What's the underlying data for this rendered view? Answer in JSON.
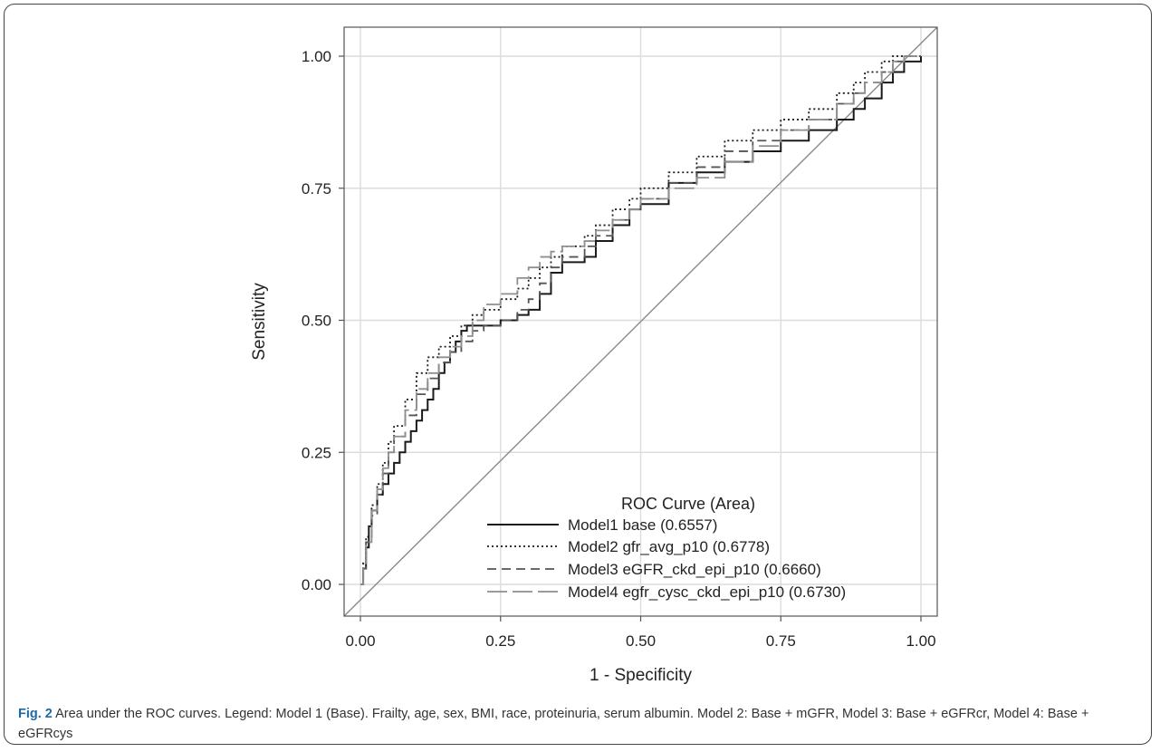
{
  "chart_data": {
    "type": "line",
    "xlabel": "1 - Specificity",
    "ylabel": "Sensitivity",
    "xlim": [
      0,
      1
    ],
    "ylim": [
      0,
      1
    ],
    "xticks": [
      "0.00",
      "0.25",
      "0.50",
      "0.75",
      "1.00"
    ],
    "yticks": [
      "0.00",
      "0.25",
      "0.50",
      "0.75",
      "1.00"
    ],
    "grid": true,
    "legend": {
      "title": "ROC Curve (Area)",
      "position": "bottom-right"
    },
    "colors": {
      "model1": "#1a1a1a",
      "model2": "#1a1a1a",
      "model3": "#555555",
      "model4": "#8f8f8f",
      "grid": "#dcdcdc",
      "diagonal": "#8a8a8a"
    },
    "series": [
      {
        "name": "Model1 base",
        "area": "(0.6557)",
        "style": "solid",
        "x": [
          0,
          0.005,
          0.01,
          0.015,
          0.02,
          0.03,
          0.04,
          0.05,
          0.06,
          0.07,
          0.08,
          0.09,
          0.1,
          0.11,
          0.12,
          0.13,
          0.14,
          0.15,
          0.16,
          0.17,
          0.18,
          0.19,
          0.2,
          0.22,
          0.25,
          0.28,
          0.3,
          0.32,
          0.34,
          0.36,
          0.4,
          0.42,
          0.45,
          0.48,
          0.5,
          0.55,
          0.6,
          0.65,
          0.7,
          0.75,
          0.8,
          0.85,
          0.88,
          0.9,
          0.93,
          0.95,
          0.97,
          1.0
        ],
        "y": [
          0,
          0.03,
          0.07,
          0.11,
          0.14,
          0.17,
          0.19,
          0.21,
          0.23,
          0.25,
          0.27,
          0.29,
          0.31,
          0.33,
          0.35,
          0.37,
          0.4,
          0.42,
          0.44,
          0.46,
          0.48,
          0.49,
          0.49,
          0.49,
          0.5,
          0.51,
          0.52,
          0.55,
          0.59,
          0.61,
          0.62,
          0.65,
          0.68,
          0.71,
          0.72,
          0.76,
          0.78,
          0.8,
          0.82,
          0.84,
          0.86,
          0.88,
          0.9,
          0.92,
          0.95,
          0.97,
          0.99,
          1.0
        ]
      },
      {
        "name": "Model2 gfr_avg_p10",
        "area": "(0.6778)",
        "style": "dotted",
        "x": [
          0,
          0.005,
          0.01,
          0.02,
          0.03,
          0.04,
          0.05,
          0.06,
          0.08,
          0.1,
          0.12,
          0.14,
          0.16,
          0.18,
          0.2,
          0.22,
          0.25,
          0.28,
          0.3,
          0.32,
          0.34,
          0.36,
          0.4,
          0.42,
          0.45,
          0.48,
          0.5,
          0.55,
          0.6,
          0.65,
          0.7,
          0.75,
          0.8,
          0.85,
          0.88,
          0.9,
          0.93,
          0.95,
          0.97,
          1.0
        ],
        "y": [
          0,
          0.04,
          0.09,
          0.15,
          0.19,
          0.23,
          0.27,
          0.3,
          0.35,
          0.4,
          0.43,
          0.45,
          0.47,
          0.49,
          0.51,
          0.52,
          0.54,
          0.56,
          0.58,
          0.6,
          0.62,
          0.64,
          0.66,
          0.68,
          0.71,
          0.73,
          0.75,
          0.78,
          0.81,
          0.84,
          0.86,
          0.88,
          0.9,
          0.93,
          0.95,
          0.97,
          0.99,
          1.0,
          1.0,
          1.0
        ]
      },
      {
        "name": "Model3 eGFR_ckd_epi_p10",
        "area": "(0.6660)",
        "style": "dashed",
        "x": [
          0,
          0.005,
          0.01,
          0.02,
          0.03,
          0.04,
          0.05,
          0.06,
          0.08,
          0.1,
          0.12,
          0.14,
          0.16,
          0.18,
          0.2,
          0.22,
          0.25,
          0.28,
          0.3,
          0.32,
          0.34,
          0.36,
          0.4,
          0.42,
          0.45,
          0.48,
          0.5,
          0.55,
          0.6,
          0.65,
          0.7,
          0.75,
          0.8,
          0.85,
          0.88,
          0.9,
          0.93,
          0.95,
          0.97,
          1.0
        ],
        "y": [
          0,
          0.03,
          0.08,
          0.13,
          0.17,
          0.21,
          0.25,
          0.28,
          0.32,
          0.36,
          0.39,
          0.42,
          0.44,
          0.46,
          0.48,
          0.49,
          0.5,
          0.52,
          0.54,
          0.57,
          0.6,
          0.62,
          0.64,
          0.66,
          0.69,
          0.71,
          0.73,
          0.76,
          0.79,
          0.82,
          0.84,
          0.86,
          0.88,
          0.91,
          0.93,
          0.95,
          0.97,
          0.99,
          1.0,
          1.0
        ]
      },
      {
        "name": "Model4 egfr_cysc_ckd_epi_p10",
        "area": "(0.6730)",
        "style": "longdash",
        "x": [
          0,
          0.005,
          0.01,
          0.02,
          0.03,
          0.04,
          0.05,
          0.06,
          0.08,
          0.1,
          0.12,
          0.14,
          0.16,
          0.18,
          0.2,
          0.22,
          0.25,
          0.28,
          0.3,
          0.32,
          0.34,
          0.36,
          0.4,
          0.42,
          0.45,
          0.48,
          0.5,
          0.55,
          0.6,
          0.65,
          0.7,
          0.75,
          0.8,
          0.85,
          0.88,
          0.9,
          0.93,
          0.95,
          0.97,
          1.0
        ],
        "y": [
          0,
          0.04,
          0.08,
          0.14,
          0.18,
          0.22,
          0.25,
          0.28,
          0.33,
          0.37,
          0.4,
          0.43,
          0.45,
          0.47,
          0.5,
          0.53,
          0.55,
          0.58,
          0.6,
          0.62,
          0.63,
          0.64,
          0.65,
          0.67,
          0.69,
          0.71,
          0.73,
          0.75,
          0.77,
          0.8,
          0.83,
          0.86,
          0.88,
          0.91,
          0.93,
          0.95,
          0.97,
          0.99,
          1.0,
          1.0
        ]
      }
    ]
  },
  "caption": {
    "label": "Fig. 2",
    "text": " Area under the ROC curves. Legend: Model 1 (Base). Frailty, age, sex, BMI, race, proteinuria, serum albumin. Model 2: Base + mGFR, Model 3: Base + eGFRcr, Model 4: Base + eGFRcys"
  }
}
